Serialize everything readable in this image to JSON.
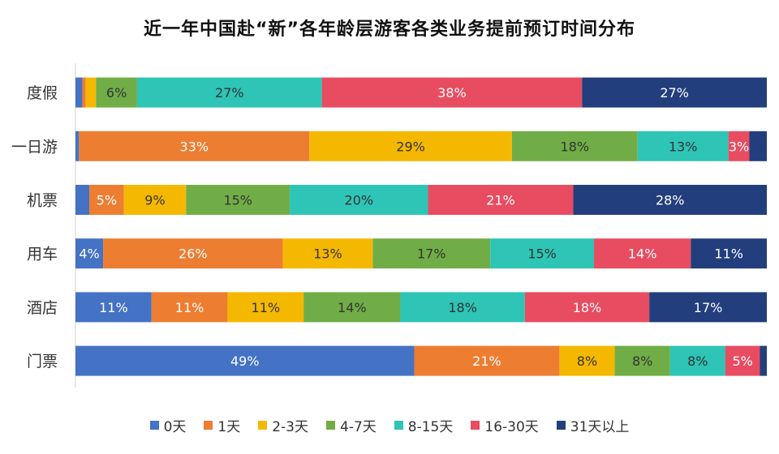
{
  "chart_data": {
    "type": "bar",
    "orientation": "horizontal",
    "stacked": true,
    "title": "近一年中国赴“新”各年龄层游客各类业务提前预订时间分布",
    "categories": [
      "度假",
      "一日游",
      "机票",
      "用车",
      "酒店",
      "门票"
    ],
    "series": [
      {
        "name": "0天",
        "color": "#4472C4",
        "values": [
          1,
          0.5,
          2,
          4,
          11,
          49
        ],
        "labels": [
          "",
          "",
          "",
          "4%",
          "11%",
          "49%"
        ]
      },
      {
        "name": "1天",
        "color": "#ED7D31",
        "values": [
          0.5,
          33,
          5,
          26,
          11,
          21
        ],
        "labels": [
          "",
          "33%",
          "5%",
          "26%",
          "11%",
          "21%"
        ]
      },
      {
        "name": "2-3天",
        "color": "#F5B800",
        "values": [
          1.5,
          29,
          9,
          13,
          11,
          8
        ],
        "labels": [
          "",
          "29%",
          "9%",
          "13%",
          "11%",
          "8%"
        ]
      },
      {
        "name": "4-7天",
        "color": "#70AD47",
        "values": [
          6,
          18,
          15,
          17,
          14,
          8
        ],
        "labels": [
          "6%",
          "18%",
          "15%",
          "17%",
          "14%",
          "8%"
        ]
      },
      {
        "name": "8-15天",
        "color": "#2EC4B6",
        "values": [
          27,
          13,
          20,
          15,
          18,
          8
        ],
        "labels": [
          "27%",
          "13%",
          "20%",
          "15%",
          "18%",
          "8%"
        ]
      },
      {
        "name": "16-30天",
        "color": "#E84C61",
        "values": [
          38,
          3,
          21,
          14,
          18,
          5
        ],
        "labels": [
          "38%",
          "3%",
          "21%",
          "14%",
          "18%",
          "5%"
        ]
      },
      {
        "name": "31天以上",
        "color": "#223E7C",
        "values": [
          27,
          2.5,
          28,
          11,
          17,
          1
        ],
        "labels": [
          "27%",
          "",
          "28%",
          "11%",
          "17%",
          ""
        ]
      }
    ],
    "legend_position": "bottom"
  }
}
